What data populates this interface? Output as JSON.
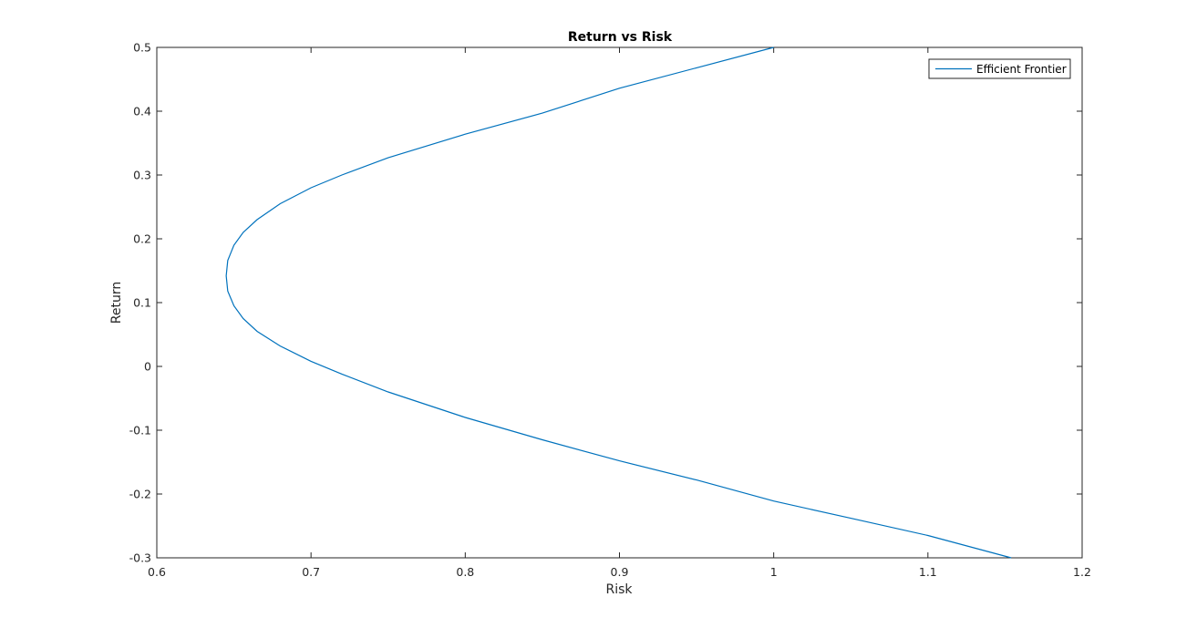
{
  "chart_data": {
    "type": "line",
    "title": "Return vs Risk",
    "xlabel": "Risk",
    "ylabel": "Return",
    "xlim": [
      0.6,
      1.2
    ],
    "ylim": [
      -0.3,
      0.5
    ],
    "xticks": [
      "0.6",
      "0.7",
      "0.8",
      "0.9",
      "1",
      "1.1",
      "1.2"
    ],
    "yticks": [
      "-0.3",
      "-0.2",
      "-0.1",
      "0",
      "0.1",
      "0.2",
      "0.3",
      "0.4",
      "0.5"
    ],
    "grid": false,
    "legend_position": "top-right",
    "series": [
      {
        "name": "Efficient Frontier",
        "color": "#0072bd",
        "x": [
          1.154,
          1.1,
          1.05,
          1.0,
          0.95,
          0.9,
          0.85,
          0.8,
          0.75,
          0.72,
          0.7,
          0.68,
          0.665,
          0.656,
          0.65,
          0.646,
          0.645,
          0.646,
          0.65,
          0.656,
          0.665,
          0.68,
          0.7,
          0.72,
          0.75,
          0.8,
          0.85,
          0.9,
          0.95,
          1.0
        ],
        "y": [
          -0.3,
          -0.265,
          -0.238,
          -0.211,
          -0.178,
          -0.148,
          -0.115,
          -0.08,
          -0.04,
          -0.012,
          0.008,
          0.032,
          0.055,
          0.075,
          0.095,
          0.118,
          0.142,
          0.166,
          0.19,
          0.21,
          0.23,
          0.255,
          0.28,
          0.3,
          0.327,
          0.364,
          0.397,
          0.436,
          0.468,
          0.5
        ]
      }
    ]
  }
}
